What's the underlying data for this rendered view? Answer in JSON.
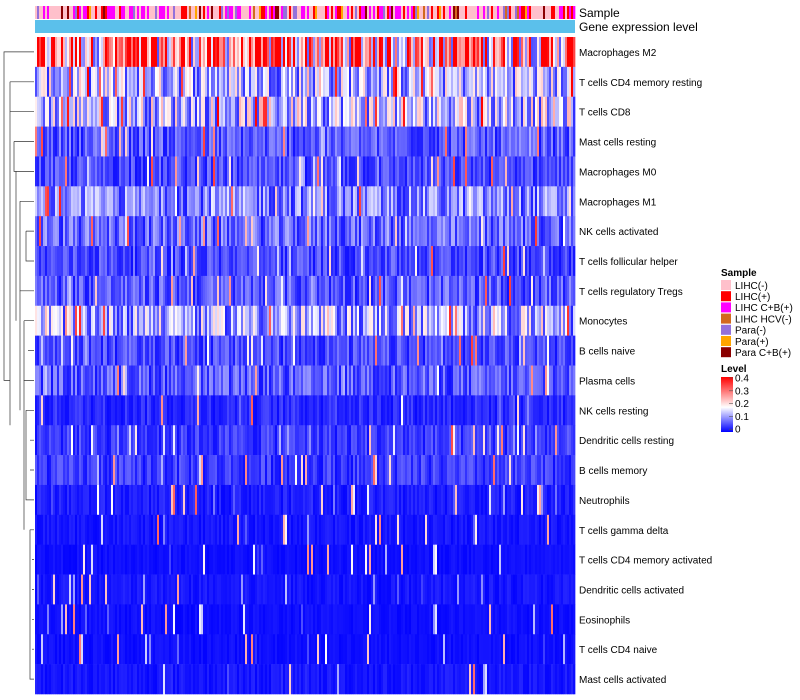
{
  "chart_data": {
    "type": "heatmap",
    "title": "",
    "annotation_tracks": [
      "Sample",
      "Gene expression level"
    ],
    "rows": [
      "Macrophages M2",
      "T cells CD4 memory resting",
      "T cells CD8",
      "Mast cells resting",
      "Macrophages M0",
      "Macrophages M1",
      "NK cells activated",
      "T cells follicular helper",
      "T cells regulatory  Tregs",
      "Monocytes",
      "B cells naive",
      "Plasma cells",
      "NK cells resting",
      "Dendritic cells resting",
      "B cells memory",
      "Neutrophils",
      "T cells gamma delta",
      "T cells CD4 memory activated",
      "Dendritic cells activated",
      "Eosinophils",
      "T cells CD4 naive",
      "Mast cells activated"
    ],
    "row_mean_level": [
      0.27,
      0.13,
      0.14,
      0.06,
      0.05,
      0.09,
      0.07,
      0.05,
      0.06,
      0.12,
      0.05,
      0.06,
      0.03,
      0.04,
      0.04,
      0.02,
      0.015,
      0.01,
      0.015,
      0.01,
      0.01,
      0.015
    ],
    "n_samples": 270,
    "legend_sample": {
      "title": "Sample",
      "items": [
        {
          "label": "LIHC(-)",
          "color": "#ffc0cb"
        },
        {
          "label": "LIHC(+)",
          "color": "#ff0000"
        },
        {
          "label": "LIHC C+B(+)",
          "color": "#ff00ff"
        },
        {
          "label": "LIHC HCV(-)",
          "color": "#d2691e"
        },
        {
          "label": "Para(-)",
          "color": "#9370db"
        },
        {
          "label": "Para(+)",
          "color": "#ffa500"
        },
        {
          "label": "Para C+B(+)",
          "color": "#8b0000"
        }
      ]
    },
    "legend_level": {
      "title": "Level",
      "ticks": [
        "0.4",
        "0.3",
        "0.2",
        "0.1",
        "0"
      ],
      "range": [
        0,
        0.4
      ],
      "colors": {
        "low": "#0000ff",
        "mid": "#ffffff",
        "high": "#ff0000"
      }
    },
    "gene_expression_color": "#5bc0eb"
  }
}
